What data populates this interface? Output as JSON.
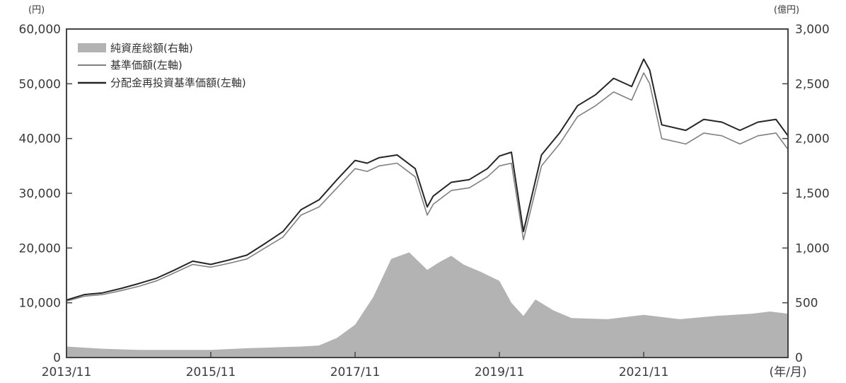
{
  "chart_data": {
    "type": "line",
    "title": "",
    "left_unit": "(円)",
    "right_unit": "(億円)",
    "x_unit": "(年/月)",
    "x_ticks": [
      "2013/11",
      "2015/11",
      "2017/11",
      "2019/11",
      "2021/11"
    ],
    "y_left": {
      "range": [
        0,
        60000
      ],
      "ticks": [
        "0",
        "10,000",
        "20,000",
        "30,000",
        "40,000",
        "50,000",
        "60,000"
      ]
    },
    "y_right": {
      "range": [
        0,
        3000
      ],
      "ticks": [
        "0",
        "500",
        "1,000",
        "1,500",
        "2,000",
        "2,500",
        "3,000"
      ]
    },
    "x_range": [
      "2013/11",
      "2023/11"
    ],
    "grid": false,
    "legend_position": "top-left",
    "colors": {
      "net_assets": "#b3b3b3",
      "nav": "#808080",
      "nav_reinvested": "#262626",
      "frame": "#444444"
    },
    "series": [
      {
        "name": "純資産総額(右軸)",
        "type": "area",
        "axis": "right",
        "x": [
          "2013/11",
          "2014/05",
          "2014/11",
          "2015/05",
          "2015/11",
          "2016/05",
          "2016/11",
          "2017/02",
          "2017/05",
          "2017/08",
          "2017/11",
          "2018/02",
          "2018/05",
          "2018/08",
          "2018/11",
          "2019/01",
          "2019/03",
          "2019/05",
          "2019/08",
          "2019/11",
          "2020/01",
          "2020/03",
          "2020/05",
          "2020/08",
          "2020/11",
          "2021/05",
          "2021/11",
          "2022/05",
          "2022/11",
          "2023/05",
          "2023/08",
          "2023/11"
        ],
        "values": [
          100,
          80,
          70,
          70,
          70,
          85,
          95,
          100,
          110,
          180,
          300,
          550,
          900,
          960,
          800,
          870,
          930,
          850,
          780,
          700,
          500,
          380,
          530,
          430,
          360,
          350,
          390,
          350,
          380,
          400,
          420,
          400
        ]
      },
      {
        "name": "基準価額(左軸)",
        "type": "line",
        "axis": "left",
        "x": [
          "2013/11",
          "2014/02",
          "2014/05",
          "2014/08",
          "2014/11",
          "2015/02",
          "2015/05",
          "2015/08",
          "2015/11",
          "2016/02",
          "2016/05",
          "2016/08",
          "2016/11",
          "2017/02",
          "2017/05",
          "2017/08",
          "2017/11",
          "2018/01",
          "2018/03",
          "2018/06",
          "2018/09",
          "2018/11",
          "2018/12",
          "2019/03",
          "2019/06",
          "2019/09",
          "2019/11",
          "2020/01",
          "2020/03",
          "2020/06",
          "2020/09",
          "2020/12",
          "2021/03",
          "2021/06",
          "2021/09",
          "2021/11",
          "2021/12",
          "2022/02",
          "2022/06",
          "2022/09",
          "2022/12",
          "2023/03",
          "2023/06",
          "2023/09",
          "2023/11"
        ],
        "values": [
          10300,
          11200,
          11500,
          12200,
          13000,
          14000,
          15500,
          17000,
          16500,
          17200,
          18000,
          20000,
          22000,
          26000,
          27500,
          31000,
          34500,
          34000,
          35000,
          35500,
          33000,
          26000,
          28000,
          30500,
          31000,
          33000,
          35000,
          35500,
          21500,
          35000,
          39000,
          44000,
          46000,
          48500,
          47000,
          52000,
          50000,
          40000,
          39000,
          41000,
          40500,
          39000,
          40500,
          41000,
          38000
        ]
      },
      {
        "name": "分配金再投資基準価額(左軸)",
        "type": "line",
        "axis": "left",
        "x": [
          "2013/11",
          "2014/02",
          "2014/05",
          "2014/08",
          "2014/11",
          "2015/02",
          "2015/05",
          "2015/08",
          "2015/11",
          "2016/02",
          "2016/05",
          "2016/08",
          "2016/11",
          "2017/02",
          "2017/05",
          "2017/08",
          "2017/11",
          "2018/01",
          "2018/03",
          "2018/06",
          "2018/09",
          "2018/11",
          "2018/12",
          "2019/03",
          "2019/06",
          "2019/09",
          "2019/11",
          "2020/01",
          "2020/03",
          "2020/06",
          "2020/09",
          "2020/12",
          "2021/03",
          "2021/06",
          "2021/09",
          "2021/11",
          "2021/12",
          "2022/02",
          "2022/06",
          "2022/09",
          "2022/12",
          "2023/03",
          "2023/06",
          "2023/09",
          "2023/11"
        ],
        "values": [
          10500,
          11500,
          11800,
          12600,
          13500,
          14500,
          16000,
          17600,
          17000,
          17800,
          18700,
          20800,
          23000,
          27000,
          28800,
          32500,
          36000,
          35500,
          36500,
          37000,
          34500,
          27500,
          29500,
          32000,
          32500,
          34500,
          36800,
          37500,
          23000,
          37000,
          41000,
          46000,
          48000,
          51000,
          49500,
          54500,
          52500,
          42500,
          41500,
          43500,
          43000,
          41500,
          43000,
          43500,
          40500
        ]
      }
    ]
  }
}
